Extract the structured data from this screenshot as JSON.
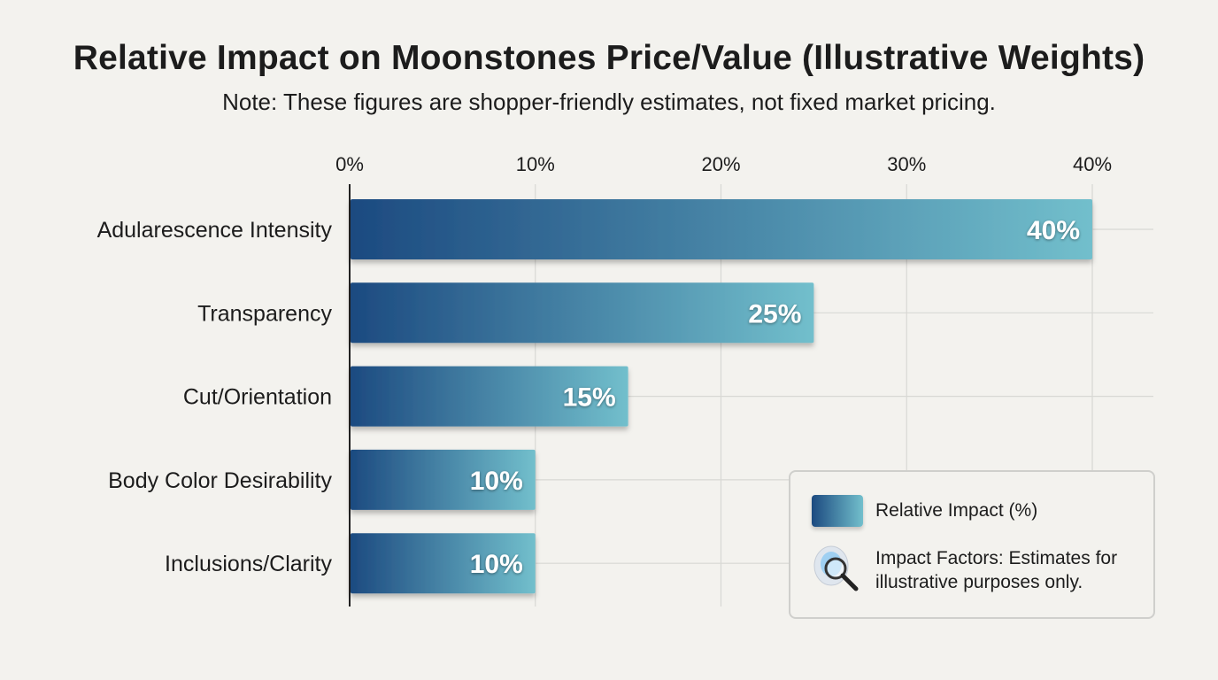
{
  "chart_data": {
    "type": "bar",
    "orientation": "horizontal",
    "title": "Relative Impact on Moonstones Price/Value (Illustrative Weights)",
    "subtitle": "Note: These figures are shopper-friendly estimates, not fixed market pricing.",
    "categories": [
      "Adularescence Intensity",
      "Transparency",
      "Cut/Orientation",
      "Body Color Desirability",
      "Inclusions/Clarity"
    ],
    "values": [
      40,
      25,
      15,
      10,
      10
    ],
    "data_labels": [
      "40%",
      "25%",
      "15%",
      "10%",
      "10%"
    ],
    "x_ticks": [
      "0%",
      "10%",
      "20%",
      "30%",
      "40%"
    ],
    "xlim": [
      0,
      40
    ],
    "xaxis_position": "top",
    "grid": true,
    "legend_position": "bottom-right",
    "colors": {
      "gradient_start": "#1c4a80",
      "gradient_end": "#72bfcc"
    },
    "legend": {
      "series_label": "Relative Impact (%)",
      "note_icon": "magnifier-moonstone-icon",
      "note": "Impact Factors: Estimates for illustrative purposes only."
    }
  }
}
